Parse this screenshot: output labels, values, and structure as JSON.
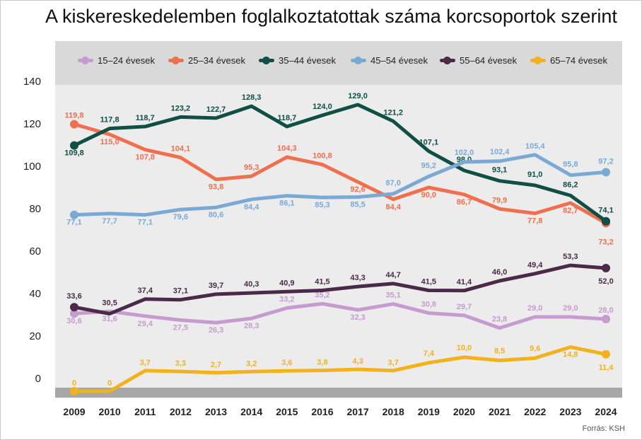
{
  "chart_data": {
    "type": "line",
    "title": "A kiskereskedelemben foglalkoztatottak száma korcsoportok szerint",
    "source": "Forrás: KSH",
    "x": [
      "2009",
      "2010",
      "2011",
      "2012",
      "2013",
      "2014",
      "2015",
      "2016",
      "2017",
      "2018",
      "2019",
      "2020",
      "2021",
      "2022",
      "2023",
      "2024"
    ],
    "yticks": [
      "140",
      "120",
      "100",
      "80",
      "60",
      "40",
      "20",
      "0"
    ],
    "ylim": [
      0,
      140
    ],
    "grid": false,
    "legend_position": "top",
    "series": [
      {
        "name": "15–24 évesek",
        "color": "#c79bd0",
        "values": [
          30.6,
          31.6,
          29.4,
          27.5,
          26.3,
          28.3,
          33.2,
          35.2,
          32.3,
          35.1,
          30.8,
          29.7,
          23.8,
          29.0,
          29.0,
          28.0
        ],
        "labels": [
          "30,6",
          "31,6",
          "29,4",
          "27,5",
          "26,3",
          "28,3",
          "33,2",
          "35,2",
          "32,3",
          "35,1",
          "30,8",
          "29,7",
          "23,8",
          "29,0",
          "29,0",
          "28,0"
        ]
      },
      {
        "name": "25–34 évesek",
        "color": "#ef6f4e",
        "values": [
          119.8,
          115.0,
          107.8,
          104.1,
          93.8,
          95.3,
          104.3,
          100.8,
          92.6,
          84.4,
          90.0,
          86.7,
          79.9,
          77.8,
          82.7,
          73.2
        ],
        "labels": [
          "119,8",
          "115,0",
          "107,8",
          "104,1",
          "93,8",
          "95,3",
          "104,3",
          "100,8",
          "92,6",
          "84,4",
          "90,0",
          "86,7",
          "79,9",
          "77,8",
          "82,7",
          "73,2"
        ]
      },
      {
        "name": "35–44 évesek",
        "color": "#0f4f45",
        "values": [
          109.8,
          117.8,
          118.7,
          123.2,
          122.7,
          128.3,
          118.7,
          124.0,
          129.0,
          121.2,
          107.1,
          98.0,
          93.1,
          91.0,
          86.2,
          74.1
        ],
        "labels": [
          "109,8",
          "117,8",
          "118,7",
          "123,2",
          "122,7",
          "128,3",
          "118,7",
          "124,0",
          "129,0",
          "121,2",
          "107,1",
          "98,0",
          "93,1",
          "91,0",
          "86,2",
          "74,1"
        ]
      },
      {
        "name": "45–54 évesek",
        "color": "#7ba9d6",
        "values": [
          77.1,
          77.7,
          77.1,
          79.6,
          80.6,
          84.4,
          86.1,
          85.3,
          85.5,
          87.0,
          95.2,
          102.0,
          102.4,
          105.4,
          95.8,
          97.2
        ],
        "labels": [
          "77,1",
          "77,7",
          "77,1",
          "79,6",
          "80,6",
          "84,4",
          "86,1",
          "85,3",
          "85,5",
          "87,0",
          "95,2",
          "102,0",
          "102,4",
          "105,4",
          "95,8",
          "97,2"
        ]
      },
      {
        "name": "55–64 évesek",
        "color": "#4a2a48",
        "values": [
          33.6,
          30.5,
          37.4,
          37.1,
          39.7,
          40.3,
          40.9,
          41.5,
          43.3,
          44.7,
          41.5,
          41.4,
          46.0,
          49.4,
          53.3,
          52.0
        ],
        "labels": [
          "33,6",
          "30,5",
          "37,4",
          "37,1",
          "39,7",
          "40,3",
          "40,9",
          "41,5",
          "43,3",
          "44,7",
          "41,5",
          "41,4",
          "46,0",
          "49,4",
          "53,3",
          "52,0"
        ]
      },
      {
        "name": "65–74 évesek",
        "color": "#f2b21b",
        "values": [
          0,
          0,
          3.7,
          3.3,
          2.7,
          3.2,
          3.6,
          3.8,
          4.3,
          3.7,
          7.4,
          10.0,
          8.5,
          9.6,
          14.8,
          11.4
        ],
        "labels": [
          "0",
          "0",
          "3,7",
          "3,3",
          "2,7",
          "3,2",
          "3,6",
          "3,8",
          "4,3",
          "3,7",
          "7,4",
          "10,0",
          "8,5",
          "9,6",
          "14,8",
          "11,4"
        ]
      }
    ]
  }
}
